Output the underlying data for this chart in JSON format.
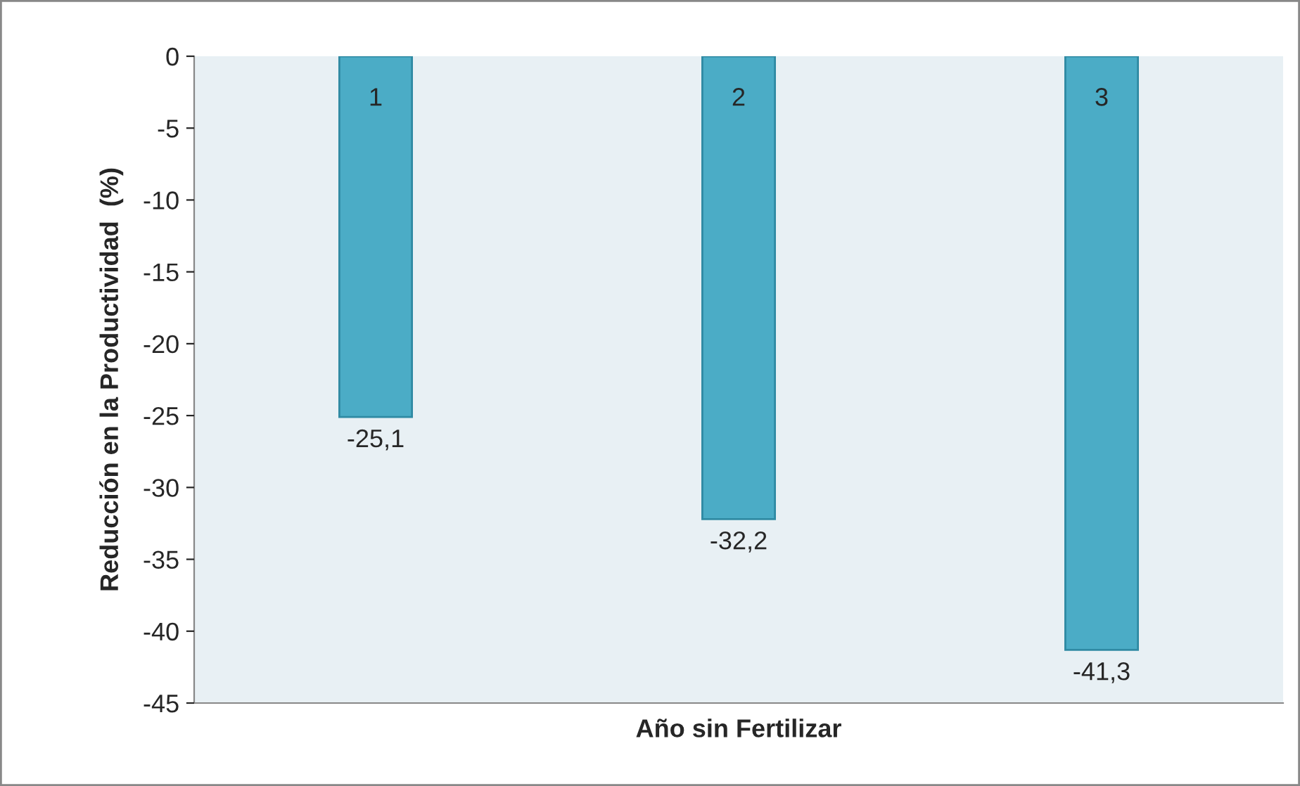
{
  "chart_data": {
    "type": "bar",
    "xlabel": "Año sin Fertilizar",
    "ylabel": "Reducción en la Productividad  (%)",
    "categories": [
      "1",
      "2",
      "3"
    ],
    "values": [
      -25.1,
      -32.2,
      -41.3
    ],
    "value_labels": [
      "-25,1",
      "-32,2",
      "-41,3"
    ],
    "color": "#4bacc6",
    "ylim": [
      -45,
      0
    ],
    "yticks": [
      0,
      -5,
      -10,
      -15,
      -20,
      -25,
      -30,
      -35,
      -40,
      -45
    ],
    "grid": false,
    "legend": false
  }
}
